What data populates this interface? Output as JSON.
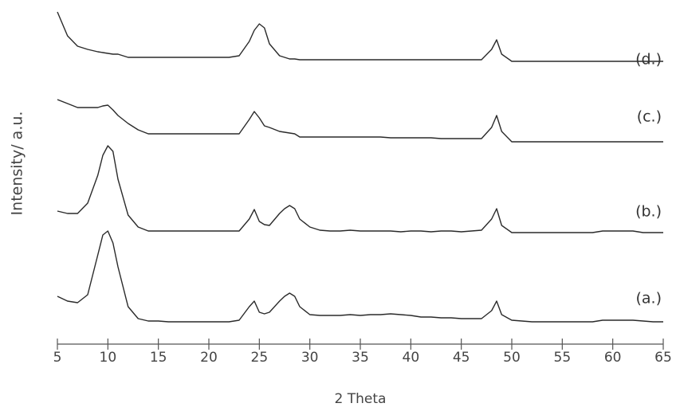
{
  "chart_data": {
    "type": "line",
    "x_label": "2 Theta",
    "y_label": "Intensity/ a.u.",
    "x": [
      5,
      6,
      7,
      8,
      9,
      9.5,
      10,
      10.5,
      11,
      12,
      13,
      14,
      15,
      16,
      17,
      18,
      19,
      20,
      21,
      22,
      23,
      24,
      24.5,
      25,
      25.5,
      26,
      27,
      27.5,
      28,
      28.5,
      29,
      30,
      31,
      32,
      33,
      34,
      35,
      36,
      37,
      38,
      39,
      40,
      41,
      42,
      43,
      44,
      45,
      46,
      47,
      48,
      48.5,
      49,
      50,
      51,
      52,
      53,
      54,
      55,
      56,
      57,
      58,
      59,
      60,
      61,
      62,
      63,
      64,
      65
    ],
    "series": [
      {
        "name": "(a.)",
        "color": "#2a2a2a",
        "values": [
          68,
          62,
          60,
          70,
          120,
          145,
          150,
          135,
          105,
          55,
          40,
          37,
          37,
          36,
          36,
          36,
          36,
          36,
          36,
          36,
          38,
          55,
          62,
          48,
          46,
          48,
          62,
          68,
          72,
          68,
          55,
          45,
          44,
          44,
          44,
          45,
          44,
          45,
          45,
          46,
          45,
          44,
          42,
          42,
          41,
          41,
          40,
          40,
          40,
          50,
          62,
          45,
          38,
          37,
          36,
          36,
          36,
          36,
          36,
          36,
          36,
          38,
          38,
          38,
          38,
          37,
          36,
          36
        ]
      },
      {
        "name": "(b.)",
        "color": "#2a2a2a",
        "values": [
          175,
          172,
          172,
          185,
          220,
          245,
          257,
          250,
          215,
          170,
          155,
          150,
          150,
          150,
          150,
          150,
          150,
          150,
          150,
          150,
          150,
          165,
          177,
          162,
          158,
          157,
          172,
          178,
          182,
          178,
          165,
          155,
          151,
          150,
          150,
          151,
          150,
          150,
          150,
          150,
          149,
          150,
          150,
          149,
          150,
          150,
          149,
          150,
          151,
          165,
          178,
          157,
          148,
          148,
          148,
          148,
          148,
          148,
          148,
          148,
          148,
          150,
          150,
          150,
          150,
          148,
          148,
          148
        ]
      },
      {
        "name": "(c.)",
        "color": "#2a2a2a",
        "values": [
          315,
          310,
          305,
          305,
          305,
          307,
          308,
          302,
          295,
          285,
          277,
          272,
          272,
          272,
          272,
          272,
          272,
          272,
          272,
          272,
          272,
          290,
          300,
          292,
          282,
          280,
          275,
          274,
          273,
          272,
          268,
          268,
          268,
          268,
          268,
          268,
          268,
          268,
          268,
          267,
          267,
          267,
          267,
          267,
          266,
          266,
          266,
          266,
          266,
          280,
          295,
          275,
          262,
          262,
          262,
          262,
          262,
          262,
          262,
          262,
          262,
          262,
          262,
          262,
          262,
          262,
          262,
          262
        ]
      },
      {
        "name": "(d.)",
        "color": "#2a2a2a",
        "values": [
          425,
          395,
          382,
          378,
          375,
          374,
          373,
          372,
          372,
          368,
          368,
          368,
          368,
          368,
          368,
          368,
          368,
          368,
          368,
          368,
          370,
          388,
          402,
          410,
          405,
          385,
          370,
          368,
          366,
          366,
          365,
          365,
          365,
          365,
          365,
          365,
          365,
          365,
          365,
          365,
          365,
          365,
          365,
          365,
          365,
          365,
          365,
          365,
          365,
          378,
          390,
          372,
          363,
          363,
          363,
          363,
          363,
          363,
          363,
          363,
          363,
          363,
          363,
          363,
          363,
          363,
          363,
          363
        ]
      }
    ],
    "xlim": [
      5,
      65
    ],
    "xticks": [
      5,
      10,
      15,
      20,
      25,
      30,
      35,
      40,
      45,
      50,
      55,
      60,
      65
    ],
    "ylim": [
      0,
      440
    ]
  }
}
